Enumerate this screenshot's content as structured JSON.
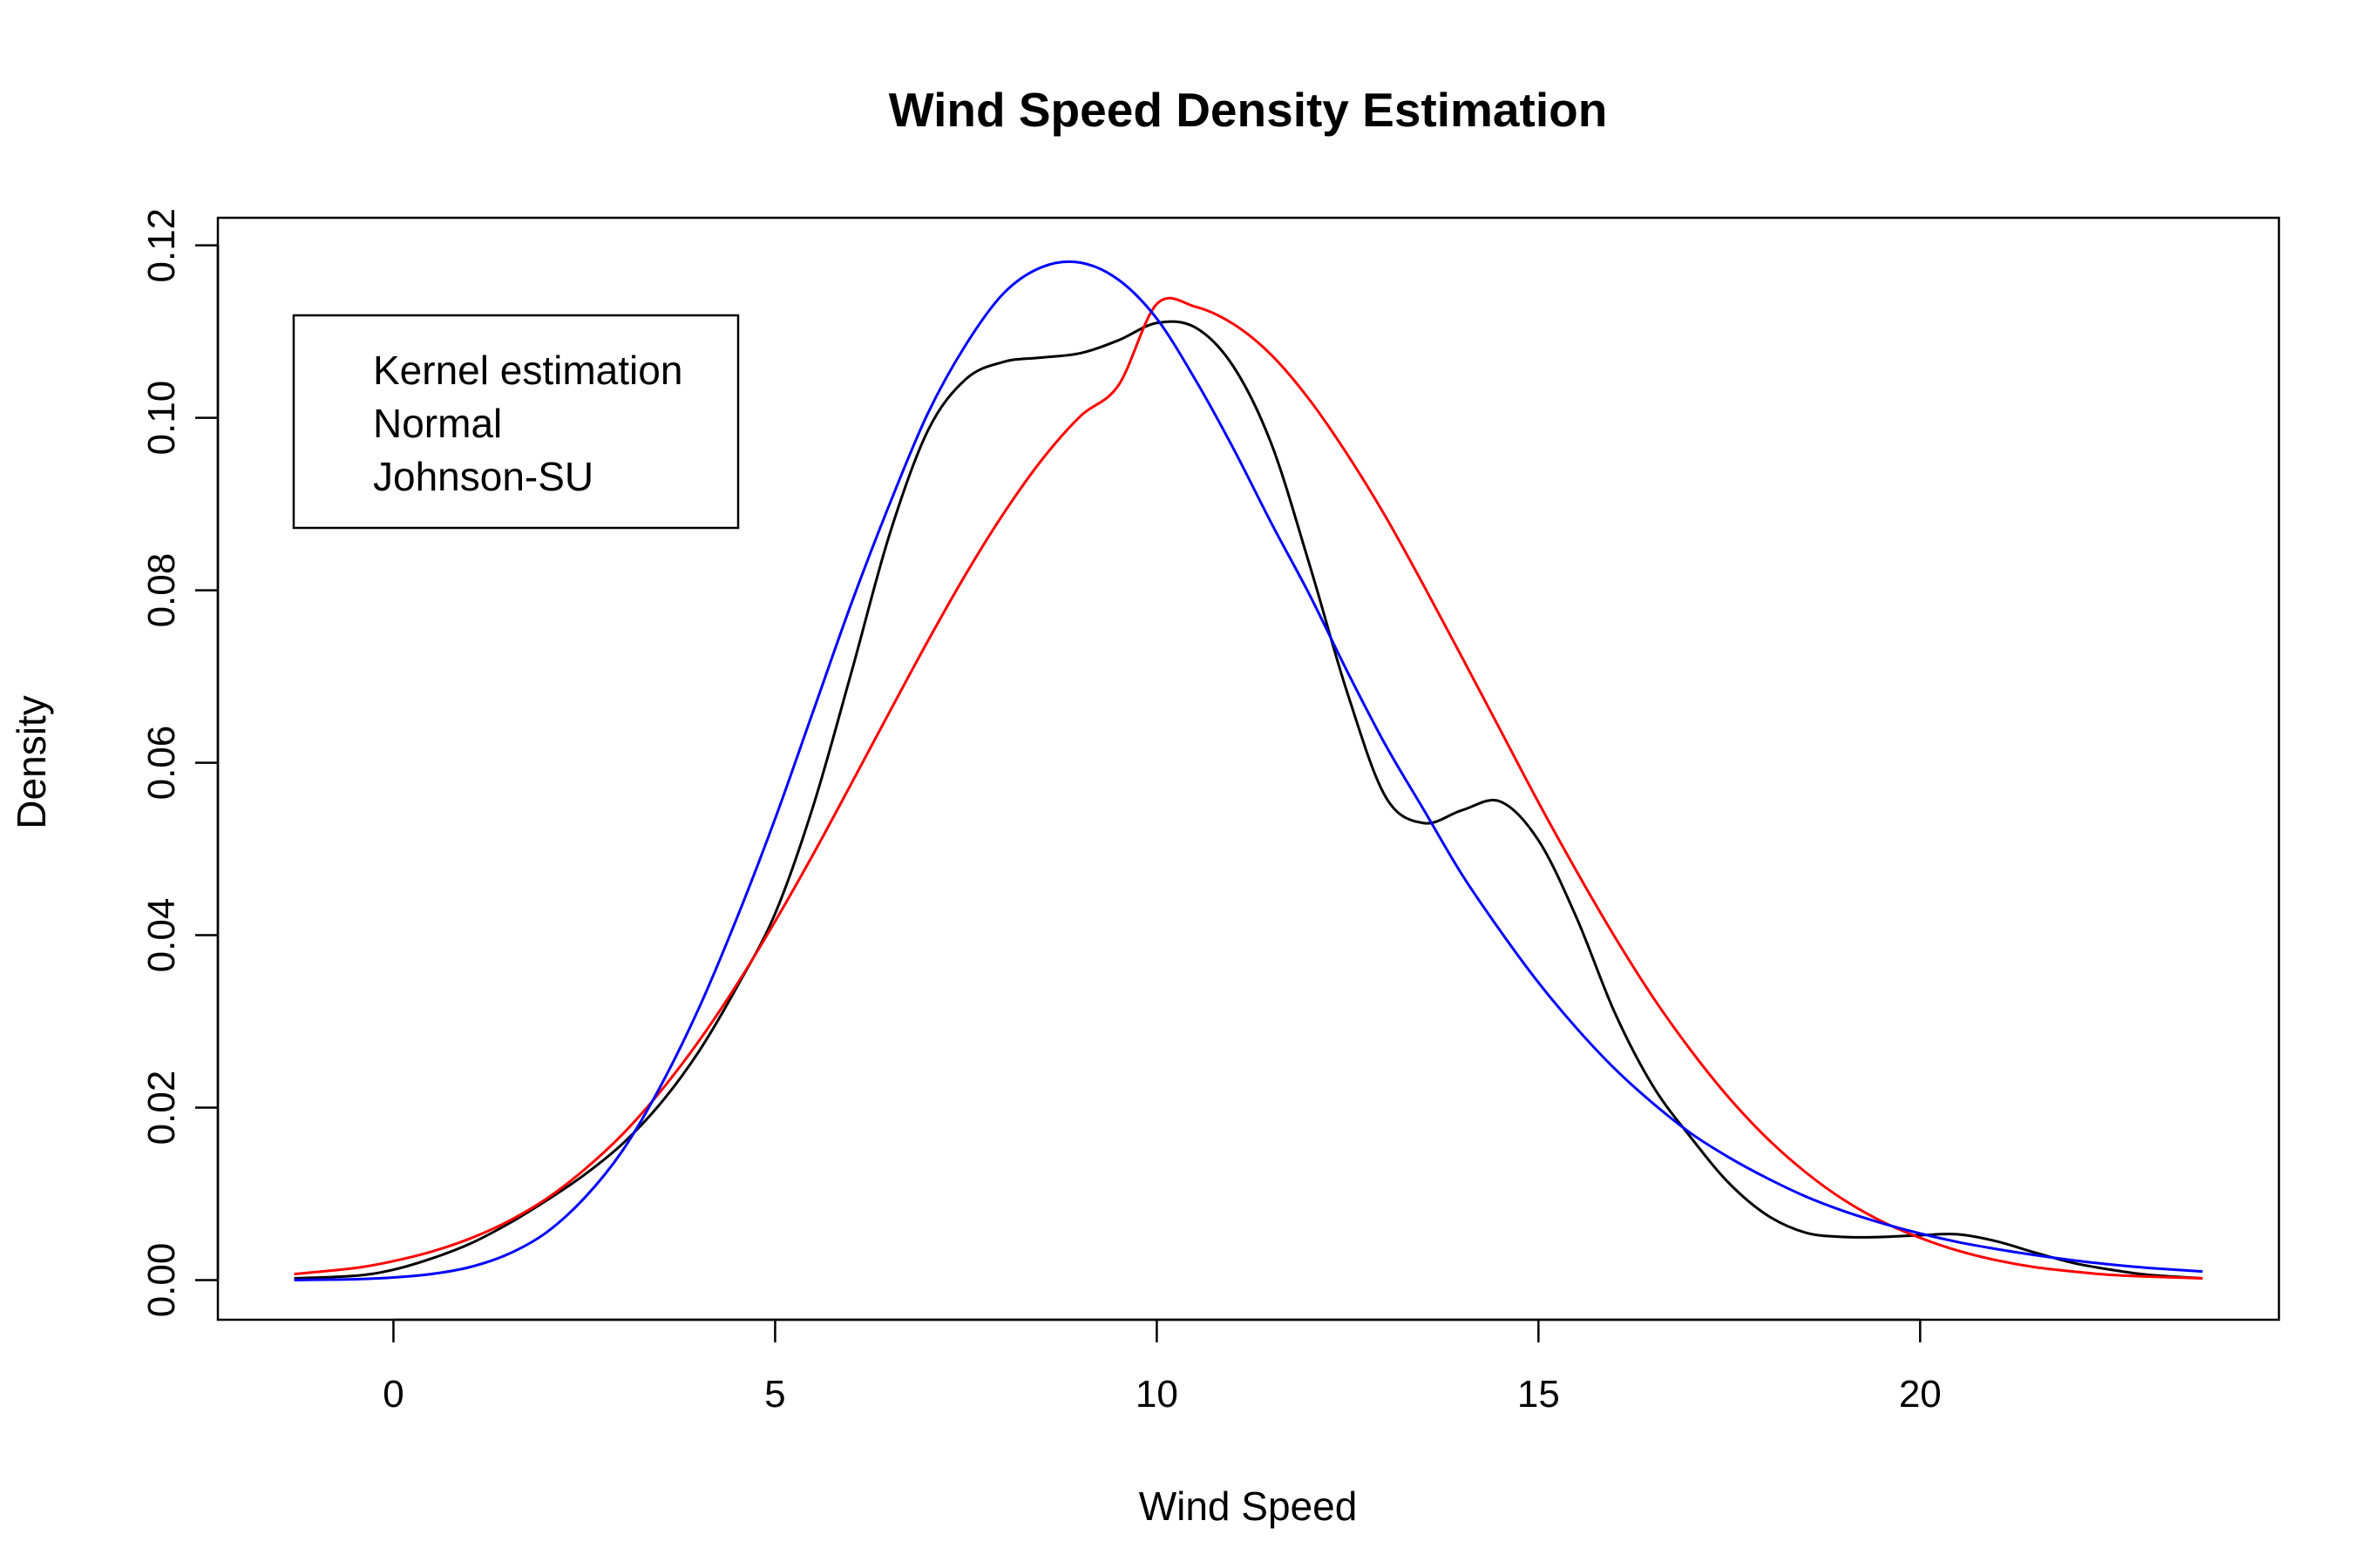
{
  "chart_data": {
    "type": "line",
    "title": "Wind Speed Density Estimation",
    "xlabel": "Wind Speed",
    "ylabel": "Density",
    "xlim": [
      -2.3,
      24.7
    ],
    "ylim": [
      -0.0046,
      0.1232
    ],
    "x_ticks": [
      0,
      5,
      10,
      15,
      20
    ],
    "y_ticks": [
      0.0,
      0.02,
      0.04,
      0.06,
      0.08,
      0.1,
      0.12
    ],
    "y_tick_labels": [
      "0.00",
      "0.02",
      "0.04",
      "0.06",
      "0.08",
      "0.10",
      "0.12"
    ],
    "grid": false,
    "legend": {
      "position": "top-left",
      "entries": [
        "Kernel estimation",
        "Normal",
        "Johnson-SU"
      ]
    },
    "series": [
      {
        "name": "Kernel estimation",
        "color": "#000000",
        "x": [
          -1.3,
          -0.5,
          0,
          0.5,
          1,
          1.5,
          2,
          2.5,
          3,
          3.5,
          4,
          4.5,
          5,
          5.5,
          6,
          6.5,
          7,
          7.5,
          8,
          8.5,
          9,
          9.5,
          10,
          10.5,
          11,
          11.5,
          12,
          12.5,
          13,
          13.5,
          14,
          14.5,
          15,
          15.5,
          16,
          16.5,
          17,
          17.5,
          18,
          18.5,
          19,
          19.5,
          20,
          20.5,
          21,
          21.5,
          22,
          22.5,
          23,
          23.7
        ],
        "y": [
          0.0002,
          0.0005,
          0.0012,
          0.0025,
          0.0042,
          0.0065,
          0.0092,
          0.0122,
          0.0158,
          0.0205,
          0.0265,
          0.034,
          0.0425,
          0.055,
          0.0705,
          0.0865,
          0.0985,
          0.1045,
          0.1065,
          0.107,
          0.1075,
          0.109,
          0.111,
          0.1105,
          0.106,
          0.097,
          0.083,
          0.068,
          0.056,
          0.053,
          0.0545,
          0.0555,
          0.051,
          0.042,
          0.031,
          0.0225,
          0.0165,
          0.0112,
          0.0075,
          0.0055,
          0.005,
          0.005,
          0.0052,
          0.0053,
          0.0045,
          0.0032,
          0.002,
          0.0012,
          0.0006,
          0.0002
        ]
      },
      {
        "name": "Normal",
        "color": "#ff0000",
        "x": [
          -1.3,
          -0.5,
          0,
          0.5,
          1,
          1.5,
          2,
          2.5,
          3,
          3.5,
          4,
          4.5,
          5,
          5.5,
          6,
          6.5,
          7,
          7.5,
          8,
          8.5,
          9,
          9.5,
          10,
          10.5,
          11,
          11.5,
          12,
          12.5,
          13,
          13.5,
          14,
          14.5,
          15,
          15.5,
          16,
          16.5,
          17,
          17.5,
          18,
          18.5,
          19,
          19.5,
          20,
          20.5,
          21,
          21.5,
          22,
          22.5,
          23,
          23.7
        ],
        "y": [
          0.0007,
          0.0014,
          0.0022,
          0.0033,
          0.0048,
          0.0068,
          0.0094,
          0.0128,
          0.0169,
          0.0219,
          0.0277,
          0.0343,
          0.0416,
          0.0494,
          0.0576,
          0.0659,
          0.0741,
          0.0819,
          0.089,
          0.0952,
          0.1002,
          0.1038,
          0.1132,
          0.1129,
          0.1109,
          0.1073,
          0.1021,
          0.0957,
          0.0885,
          0.0805,
          0.0722,
          0.0638,
          0.0554,
          0.0474,
          0.0398,
          0.0328,
          0.0266,
          0.0211,
          0.0164,
          0.0125,
          0.0093,
          0.0068,
          0.0049,
          0.0034,
          0.0023,
          0.0015,
          0.001,
          0.0006,
          0.0004,
          0.0002
        ]
      },
      {
        "name": "Johnson-SU",
        "color": "#0000ff",
        "x": [
          -1.3,
          -0.5,
          0,
          0.5,
          1,
          1.5,
          2,
          2.5,
          3,
          3.5,
          4,
          4.5,
          5,
          5.5,
          6,
          6.5,
          7,
          7.5,
          8,
          8.5,
          9,
          9.5,
          10,
          10.5,
          11,
          11.5,
          12,
          12.5,
          13,
          13.5,
          14,
          14.5,
          15,
          15.5,
          16,
          16.5,
          17,
          17.5,
          18,
          18.5,
          19,
          19.5,
          20,
          20.5,
          21,
          21.5,
          22,
          22.5,
          23,
          23.7
        ],
        "y": [
          0.0,
          0.0001,
          0.0003,
          0.0007,
          0.0015,
          0.003,
          0.0055,
          0.0095,
          0.015,
          0.0225,
          0.0315,
          0.042,
          0.0535,
          0.066,
          0.0785,
          0.09,
          0.1005,
          0.1085,
          0.1145,
          0.1175,
          0.118,
          0.116,
          0.1115,
          0.1045,
          0.0965,
          0.0878,
          0.0795,
          0.0705,
          0.062,
          0.0545,
          0.047,
          0.0405,
          0.0345,
          0.0292,
          0.0245,
          0.0205,
          0.017,
          0.0142,
          0.0118,
          0.0097,
          0.008,
          0.0066,
          0.0054,
          0.0044,
          0.0036,
          0.0029,
          0.0023,
          0.0018,
          0.0014,
          0.001
        ]
      }
    ]
  }
}
